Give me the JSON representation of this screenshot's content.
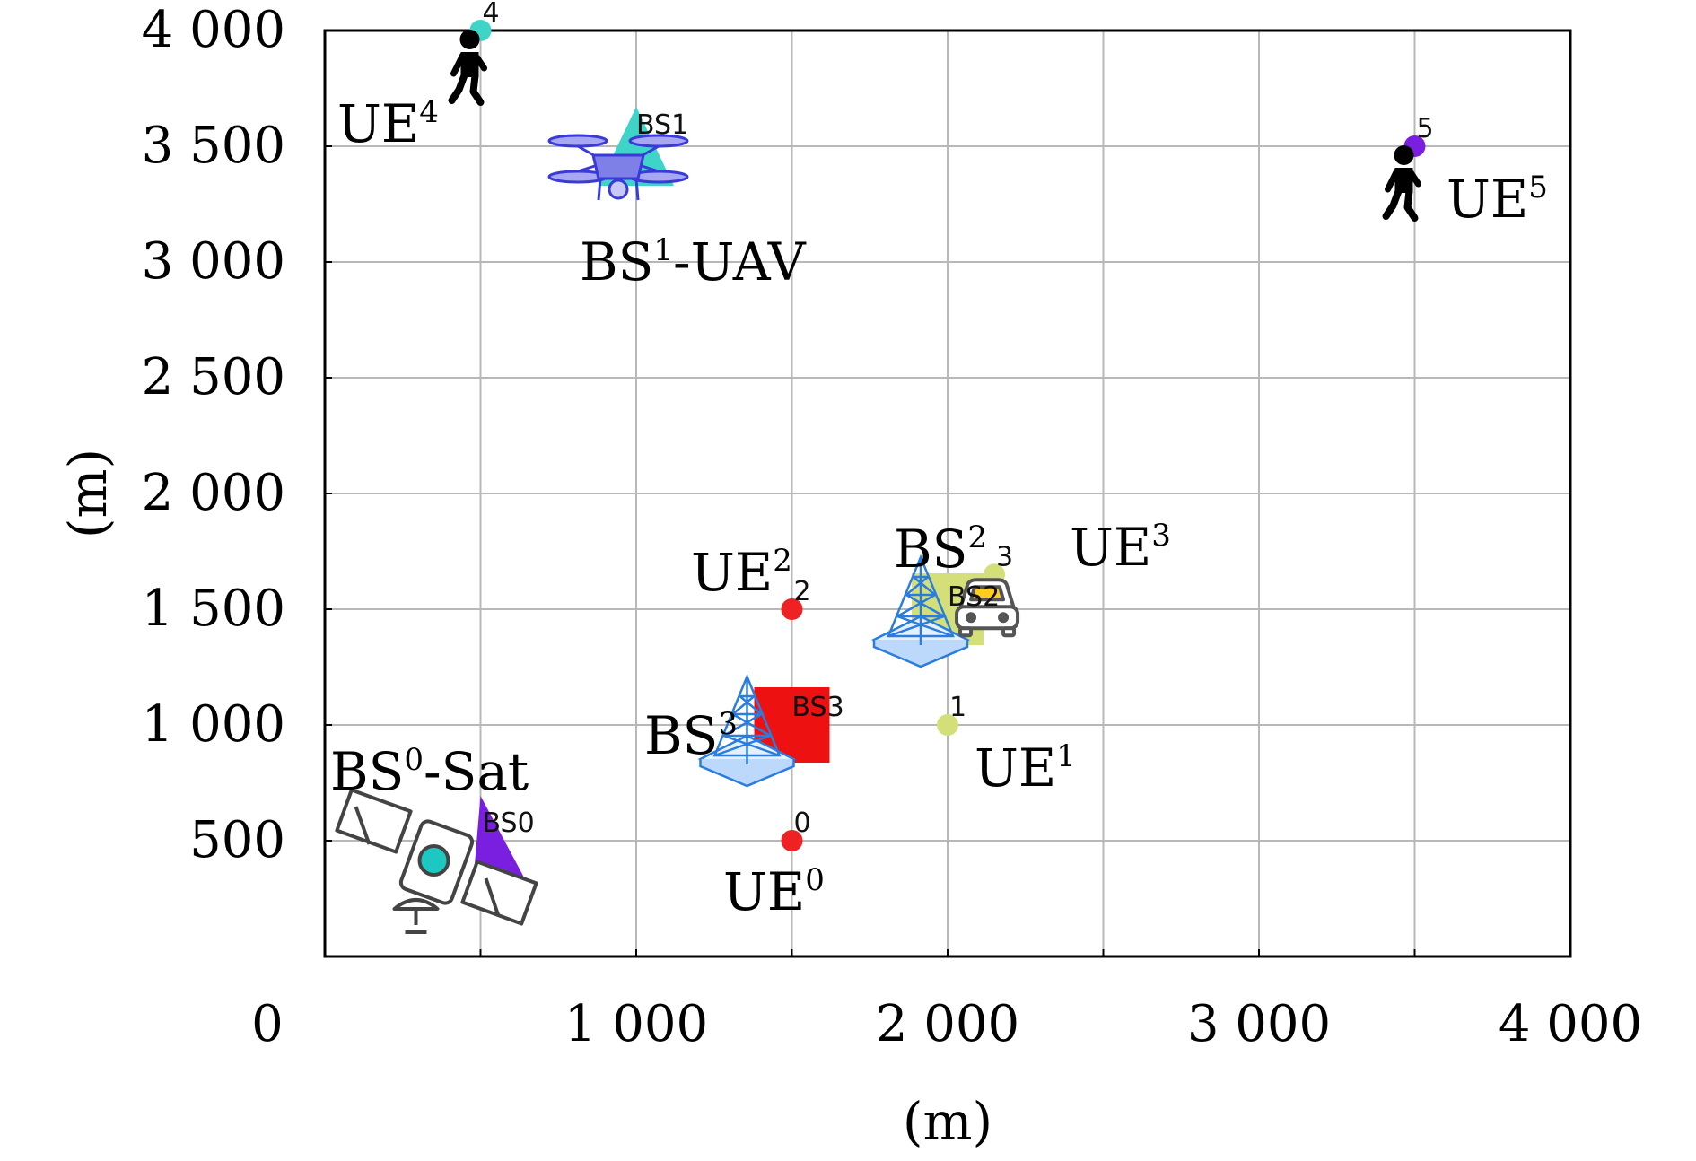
{
  "chart_data": {
    "type": "scatter",
    "xlabel": "(m)",
    "ylabel": "(m)",
    "xlim": [
      0,
      4000
    ],
    "ylim": [
      0,
      4000
    ],
    "grid": true,
    "x_ticks": [
      "0",
      "1 000",
      "2 000",
      "3 000",
      "4 000"
    ],
    "y_ticks": [
      "500",
      "1 000",
      "1 500",
      "2 000",
      "2 500",
      "3 000",
      "3 500",
      "4 000"
    ],
    "base_stations": [
      {
        "id": "BS0",
        "label": "BS0",
        "annotation": "BS",
        "annotation_sup": "0",
        "annotation_suffix": "-Sat",
        "marker": "wedge",
        "color": "#7a1fe0",
        "x": 500,
        "y": 500,
        "icon": "satellite-icon"
      },
      {
        "id": "BS1",
        "label": "BS1",
        "annotation": "BS",
        "annotation_sup": "1",
        "annotation_suffix": "-UAV",
        "marker": "triangle",
        "color": "#3fd4c8",
        "x": 1000,
        "y": 3500,
        "icon": "drone-icon"
      },
      {
        "id": "BS2",
        "label": "BS2",
        "annotation": "BS",
        "annotation_sup": "2",
        "annotation_suffix": "",
        "marker": "square",
        "color": "#d4df7a",
        "x": 2000,
        "y": 1500,
        "icon": "tower-icon"
      },
      {
        "id": "BS3",
        "label": "BS3",
        "annotation": "BS",
        "annotation_sup": "3",
        "annotation_suffix": "",
        "marker": "square",
        "color": "#ee1111",
        "x": 1500,
        "y": 1000,
        "icon": "tower-icon"
      }
    ],
    "user_equipment": [
      {
        "id": "0",
        "label": "0",
        "annotation": "UE",
        "annotation_sup": "0",
        "color": "#ee2222",
        "x": 1500,
        "y": 500
      },
      {
        "id": "1",
        "label": "1",
        "annotation": "UE",
        "annotation_sup": "1",
        "color": "#d4df7a",
        "x": 2000,
        "y": 1000
      },
      {
        "id": "2",
        "label": "2",
        "annotation": "UE",
        "annotation_sup": "2",
        "color": "#ee2222",
        "x": 1500,
        "y": 1500
      },
      {
        "id": "3",
        "label": "3",
        "annotation": "UE",
        "annotation_sup": "3",
        "color": "#d4df7a",
        "x": 2150,
        "y": 1650,
        "icon": "car-icon"
      },
      {
        "id": "4",
        "label": "4",
        "annotation": "UE",
        "annotation_sup": "4",
        "color": "#3fd4c8",
        "x": 500,
        "y": 4000,
        "icon": "pedestrian-icon"
      },
      {
        "id": "5",
        "label": "5",
        "annotation": "UE",
        "annotation_sup": "5",
        "color": "#7a1fe0",
        "x": 3500,
        "y": 3500,
        "icon": "pedestrian-icon"
      }
    ]
  }
}
